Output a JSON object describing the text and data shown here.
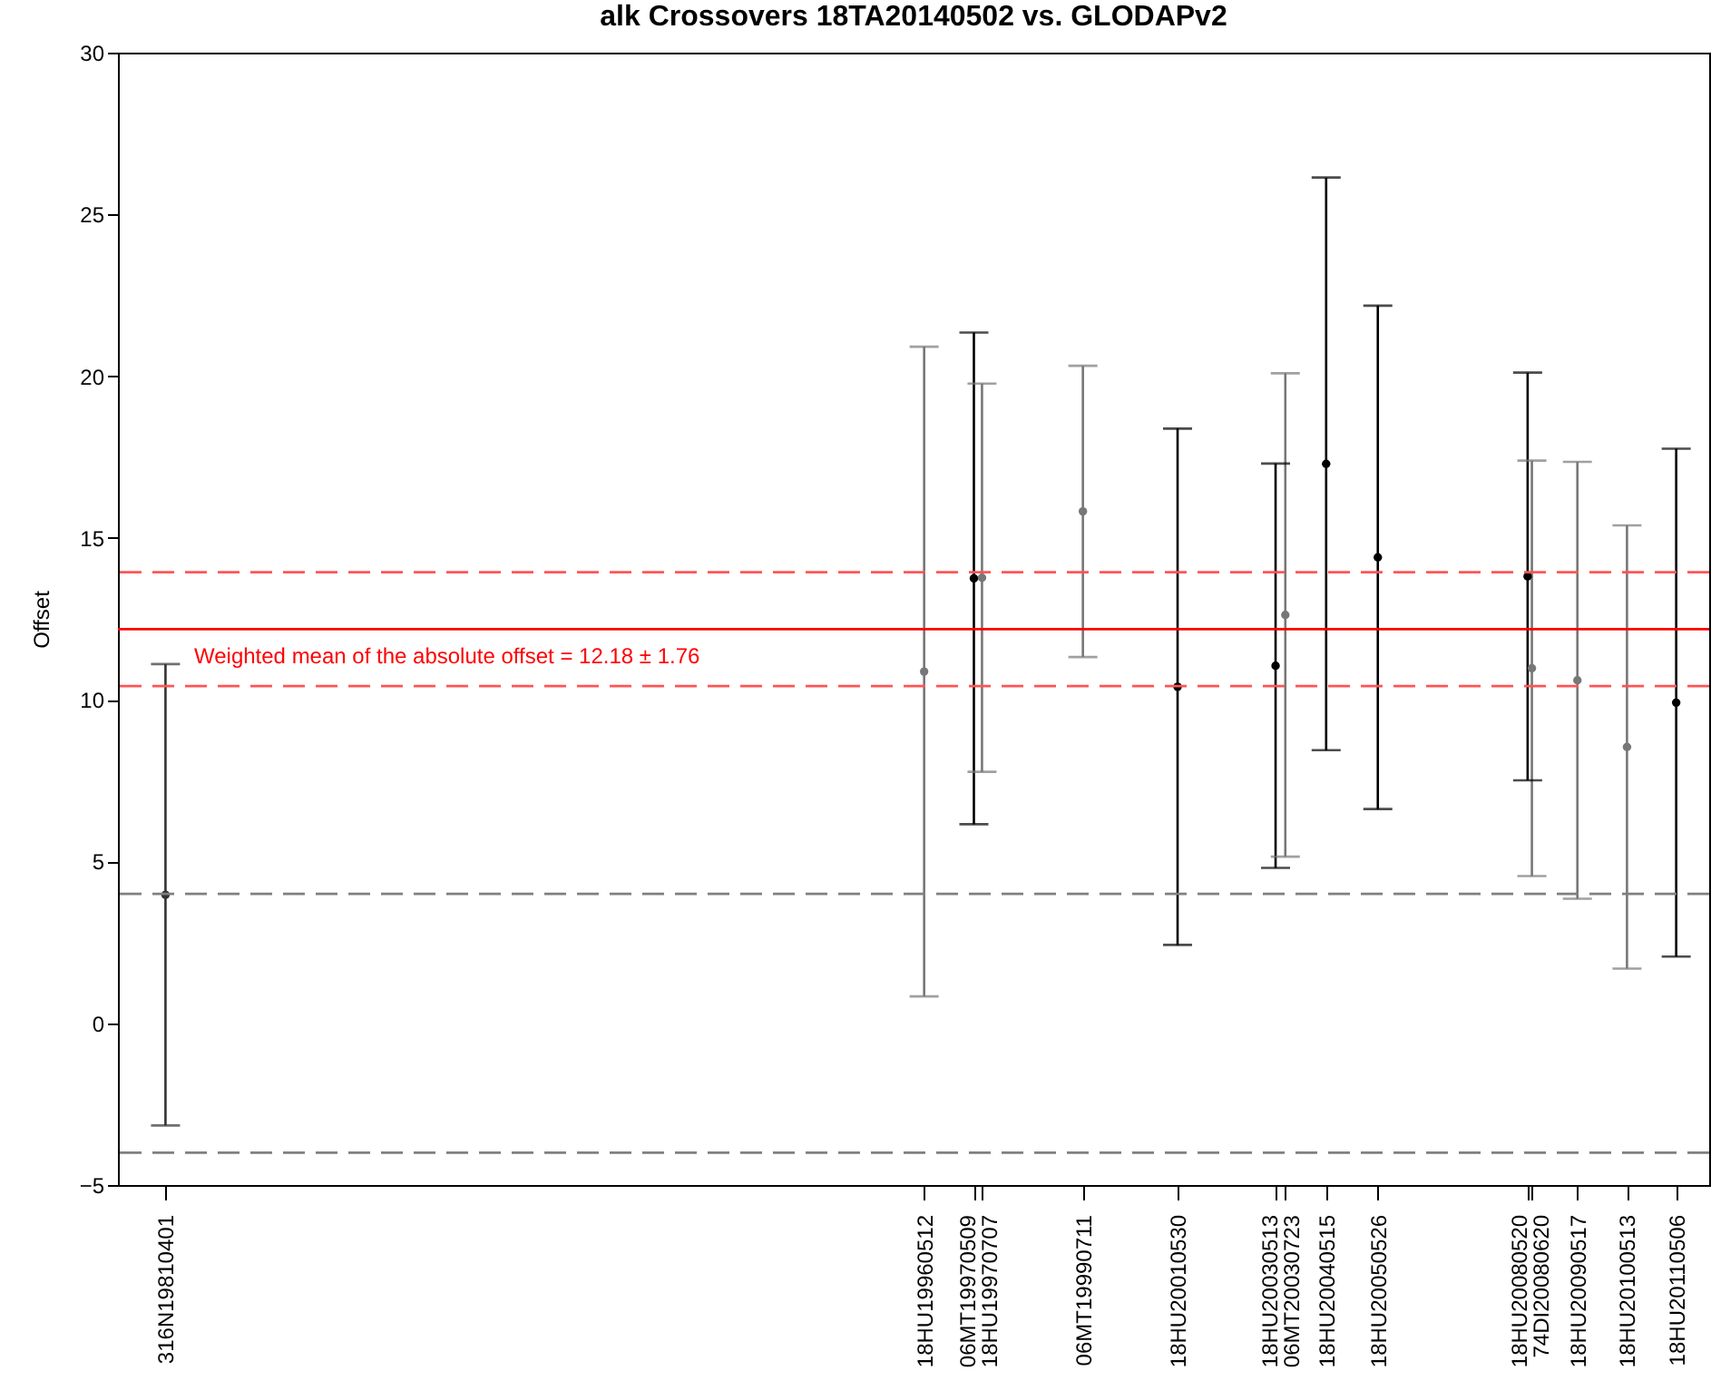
{
  "chart_data": {
    "type": "scatter",
    "title": "alk Crossovers 18TA20140502 vs. GLODAPv2",
    "ylabel": "Offset",
    "x": [
      "1981-04-01",
      "1996-05-12",
      "1997-05-09",
      "1997-07-07",
      "1999-07-11",
      "2001-05-30",
      "2003-07-23",
      "2003-05-13",
      "2004-05-15",
      "2005-05-26",
      "2008-05-20",
      "2008-06-20",
      "2009-05-17",
      "2010-05-13",
      "2011-05-06"
    ],
    "series": [
      {
        "values": [
          3.97,
          10.87,
          13.75,
          13.77,
          15.82,
          10.4,
          12.62,
          11.05,
          17.29,
          14.4,
          13.81,
          10.97,
          10.6,
          8.54,
          9.91
        ],
        "errors": [
          7.13,
          10.04,
          7.6,
          6.0,
          4.5,
          7.98,
          7.47,
          6.25,
          8.85,
          7.78,
          6.3,
          6.42,
          6.75,
          6.85,
          7.85
        ],
        "colors": [
          "#333333",
          "#777777",
          "#000000",
          "#777777",
          "#777777",
          "#000000",
          "#777777",
          "#000000",
          "#000000",
          "#000000",
          "#000000",
          "#777777",
          "#777777",
          "#777777",
          "#000000"
        ]
      }
    ],
    "marker": "circle",
    "xlim": [
      "1980-04-20",
      "2012-01-01"
    ],
    "xticks": [
      {
        "value": "1981-04-01",
        "label": "316N19810401"
      },
      {
        "value": "1996-05-12",
        "label": "18HU19960512"
      },
      {
        "value": "1997-05-09",
        "label": "06MT19970509"
      },
      {
        "value": "1997-07-07",
        "label": "18HU19970707"
      },
      {
        "value": "1999-07-11",
        "label": "06MT19990711"
      },
      {
        "value": "2001-05-30",
        "label": "18HU20010530"
      },
      {
        "value": "2003-07-23",
        "label": "06MT20030723"
      },
      {
        "value": "2003-05-13",
        "label": "18HU20030513"
      },
      {
        "value": "2004-05-15",
        "label": "18HU20040515"
      },
      {
        "value": "2005-05-26",
        "label": "18HU20050526"
      },
      {
        "value": "2008-05-20",
        "label": "18HU20080520"
      },
      {
        "value": "2008-06-20",
        "label": "74DI20080620"
      },
      {
        "value": "2009-05-17",
        "label": "18HU20090517"
      },
      {
        "value": "2010-05-13",
        "label": "18HU20100513"
      },
      {
        "value": "2011-05-06",
        "label": "18HU20110506"
      }
    ],
    "ylim": [
      -5,
      30
    ],
    "yticks": [
      -5,
      0,
      5,
      10,
      15,
      20,
      25,
      30
    ],
    "ref_lines": [
      {
        "axis": "y",
        "value": 12.18,
        "label": "Weighted mean of the absolute offset = 12.18 ± 1.76",
        "color": "#ff0000",
        "line_style": "solid"
      },
      {
        "axis": "y",
        "value": 13.94,
        "color": "#ff5555",
        "line_style": "dashed"
      },
      {
        "axis": "y",
        "value": 10.42,
        "color": "#ff5555",
        "line_style": "dashed"
      },
      {
        "axis": "y",
        "value": 4,
        "color": "#808080",
        "line_style": "dashed"
      },
      {
        "axis": "y",
        "value": -4,
        "color": "#808080",
        "line_style": "dashed"
      }
    ],
    "grid": false,
    "legend": false
  }
}
